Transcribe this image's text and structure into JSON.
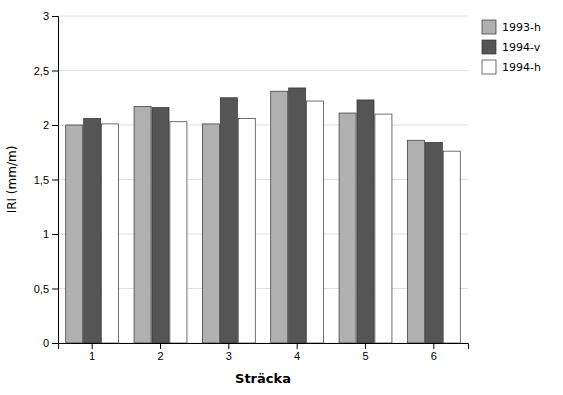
{
  "chart_data": {
    "type": "bar",
    "categories": [
      "1",
      "2",
      "3",
      "4",
      "5",
      "6"
    ],
    "series": [
      {
        "name": "1993-h",
        "color": "#b0b0b0",
        "values": [
          2.0,
          2.17,
          2.01,
          2.31,
          2.11,
          1.86
        ]
      },
      {
        "name": "1994-v",
        "color": "#555555",
        "values": [
          2.06,
          2.16,
          2.25,
          2.34,
          2.23,
          1.84
        ]
      },
      {
        "name": "1994-h",
        "color": "#ffffff",
        "values": [
          2.01,
          2.03,
          2.06,
          2.22,
          2.1,
          1.76
        ]
      }
    ],
    "xlabel": "Sträcka",
    "ylabel": "IRI (mm/m)",
    "ylim": [
      0,
      3.0
    ],
    "yticks": [
      0,
      {
        "value": 0.5,
        "label": "0,5"
      },
      1,
      {
        "value": 1.5,
        "label": "1,5"
      },
      2,
      {
        "value": 2.5,
        "label": "2,5"
      },
      3
    ],
    "grid": true,
    "legend": "upper right"
  }
}
